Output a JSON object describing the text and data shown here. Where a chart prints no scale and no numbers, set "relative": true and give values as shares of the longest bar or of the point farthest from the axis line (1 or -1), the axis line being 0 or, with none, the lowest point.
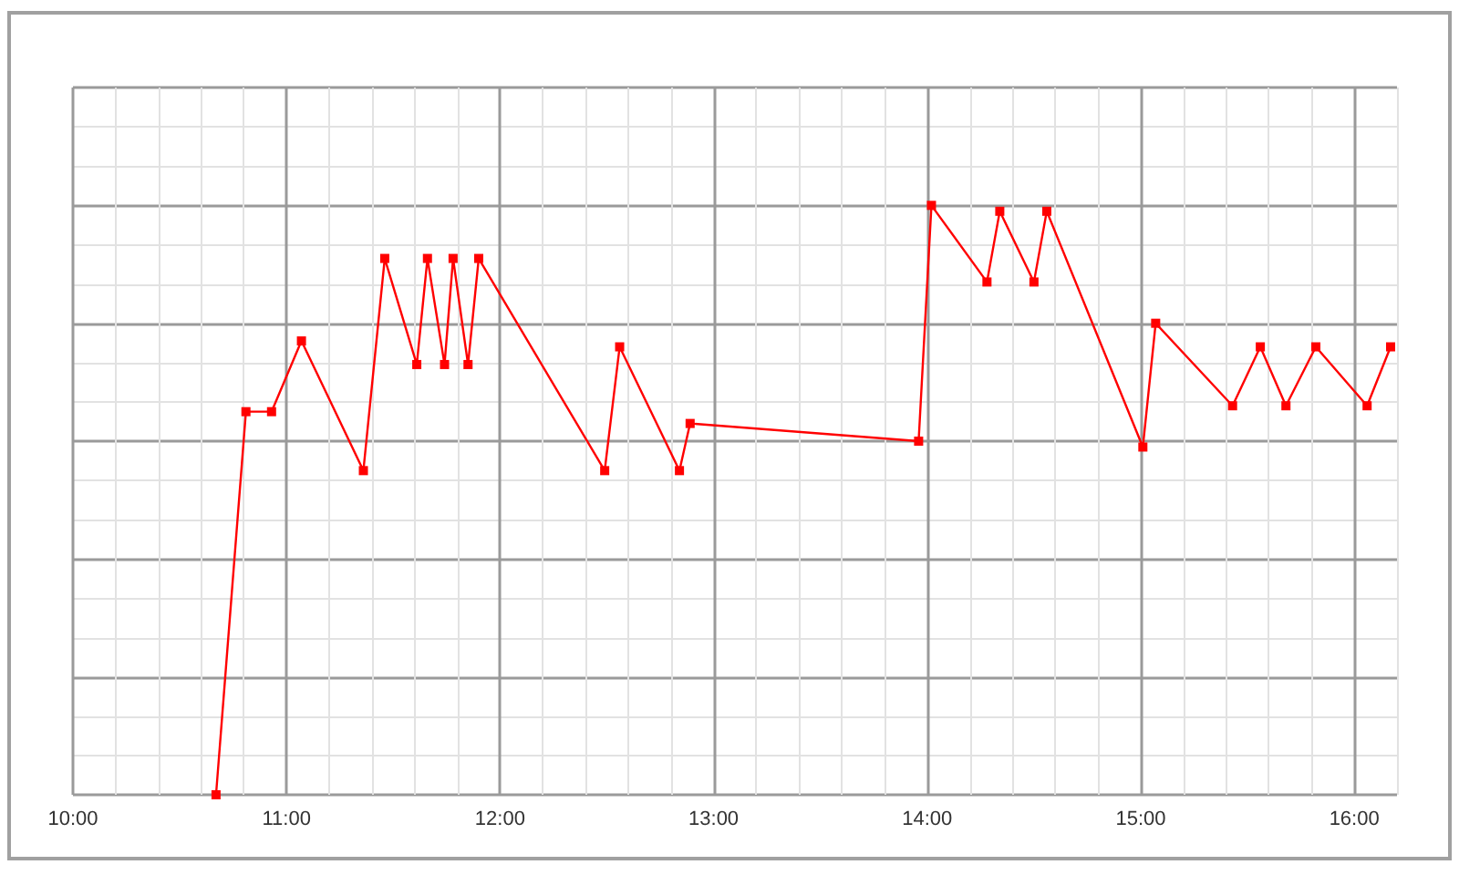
{
  "chart_data": {
    "type": "line",
    "relative": true,
    "color": "#ff0000",
    "marker": "square",
    "line_style": "solid",
    "grid": true,
    "xlim": [
      10,
      16.2
    ],
    "xticks": [
      {
        "value": 10,
        "label": "10:00"
      },
      {
        "value": 11,
        "label": "11:00"
      },
      {
        "value": 12,
        "label": "12:00"
      },
      {
        "value": 13,
        "label": "13:00"
      },
      {
        "value": 14,
        "label": "14:00"
      },
      {
        "value": 15,
        "label": "15:00"
      },
      {
        "value": 16,
        "label": "16:00"
      }
    ],
    "x": [
      10.67,
      10.81,
      10.93,
      11.07,
      11.36,
      11.46,
      11.61,
      11.66,
      11.74,
      11.78,
      11.85,
      11.9,
      12.49,
      12.56,
      12.84,
      12.89,
      13.96,
      14.02,
      14.28,
      14.34,
      14.5,
      14.56,
      15.01,
      15.07,
      15.43,
      15.56,
      15.68,
      15.82,
      16.06,
      16.17
    ],
    "values": [
      0,
      0.65,
      0.65,
      0.77,
      0.55,
      0.91,
      0.73,
      0.91,
      0.73,
      0.91,
      0.73,
      0.91,
      0.55,
      0.76,
      0.55,
      0.63,
      0.6,
      1,
      0.87,
      0.99,
      0.87,
      0.99,
      0.59,
      0.8,
      0.66,
      0.76,
      0.66,
      0.76,
      0.66,
      0.76
    ]
  }
}
